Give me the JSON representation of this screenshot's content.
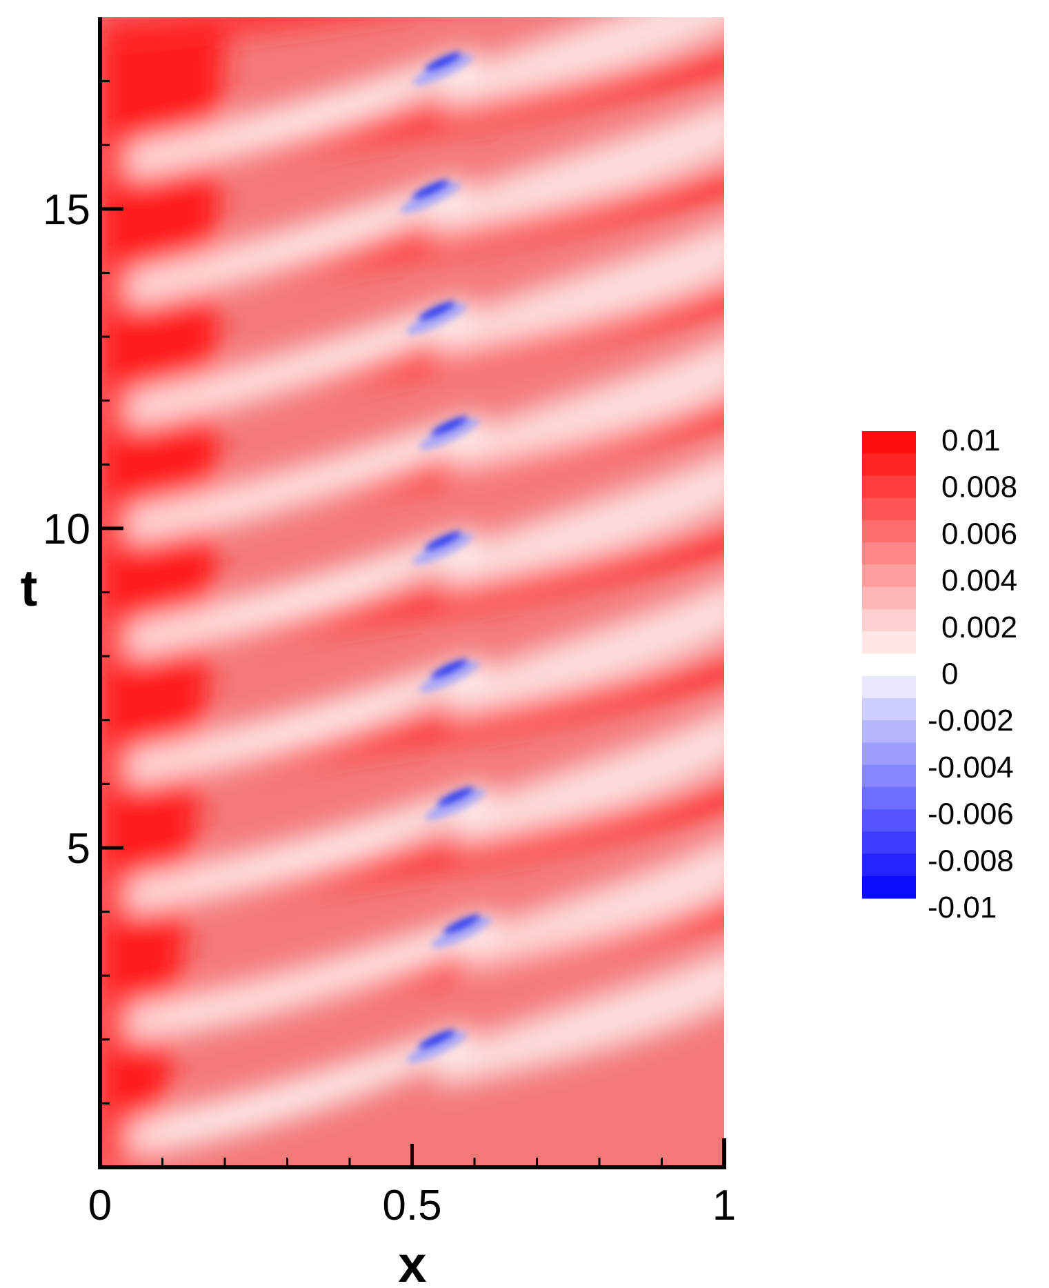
{
  "chart_data": {
    "type": "heatmap",
    "title": "",
    "xlabel": "x",
    "ylabel": "t",
    "xlim": [
      0,
      1
    ],
    "ylim": [
      0,
      18
    ],
    "x_ticks": [
      {
        "value": 0,
        "label": "0"
      },
      {
        "value": 0.5,
        "label": "0.5"
      },
      {
        "value": 1,
        "label": "1"
      }
    ],
    "y_ticks": [
      {
        "value": 5,
        "label": "5"
      },
      {
        "value": 10,
        "label": "10"
      },
      {
        "value": 15,
        "label": "15"
      }
    ],
    "x_minor_step": 0.1,
    "y_minor_step": 1,
    "colorbar": {
      "min": -0.01,
      "max": 0.01,
      "levels": 21,
      "colors": {
        "negative": "#0000ff",
        "zero": "#ffffff",
        "positive": "#ff0000"
      },
      "labels": [
        "0.01",
        "0.008",
        "0.006",
        "0.004",
        "0.002",
        "0",
        "-0.002",
        "-0.004",
        "-0.006",
        "-0.008",
        "-0.01"
      ],
      "placement": "right"
    },
    "field_features": {
      "description_of_pattern": "diagonal striations",
      "blue_spots": [
        {
          "x": 0.54,
          "t": 2.0
        },
        {
          "x": 0.58,
          "t": 3.8
        },
        {
          "x": 0.57,
          "t": 5.8
        },
        {
          "x": 0.56,
          "t": 7.8
        },
        {
          "x": 0.55,
          "t": 9.8
        },
        {
          "x": 0.56,
          "t": 11.6
        },
        {
          "x": 0.54,
          "t": 13.4
        },
        {
          "x": 0.53,
          "t": 15.3
        },
        {
          "x": 0.55,
          "t": 17.3
        }
      ]
    }
  }
}
